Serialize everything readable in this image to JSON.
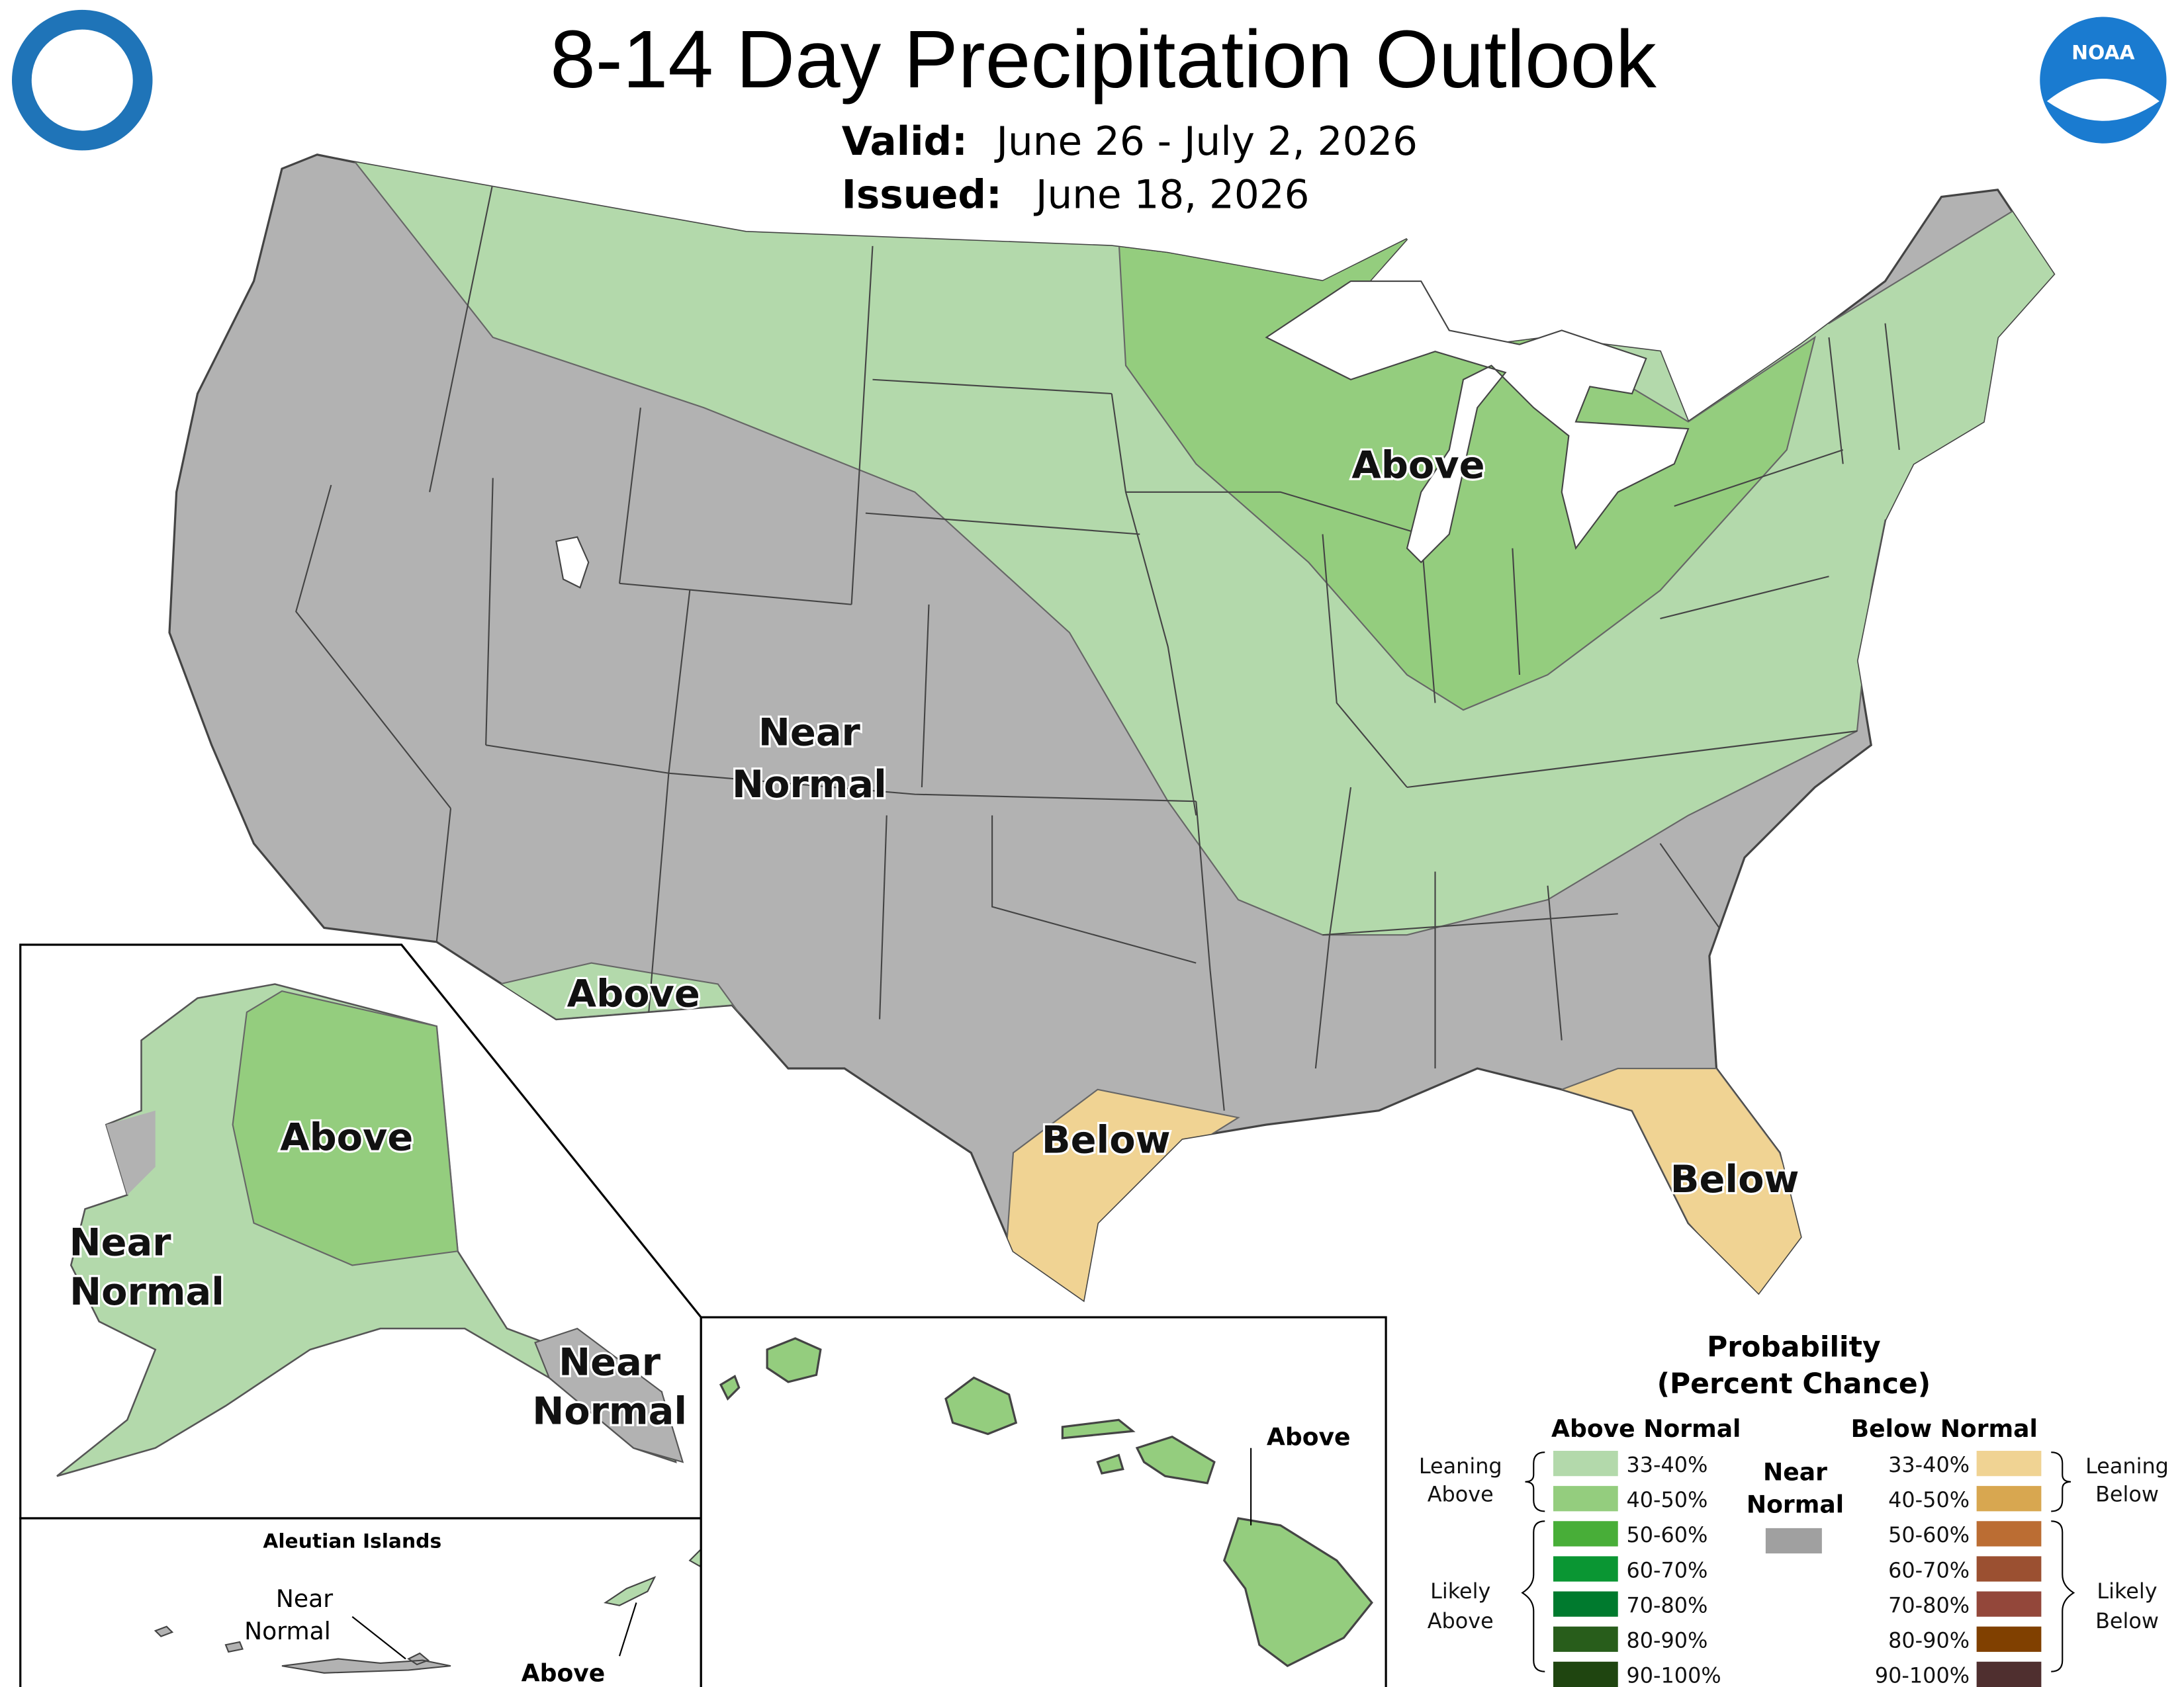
{
  "header": {
    "title": "8-14 Day Precipitation Outlook",
    "valid_label": "Valid:",
    "valid": "June 26 - July 2, 2026",
    "issued_label": "Issued:",
    "issued": "June 18, 2026",
    "noaa_logo": "NOAA"
  },
  "map": {
    "colors": {
      "near_normal": "#b2b2b2",
      "leaning_above": "#b3d9ab",
      "above_40_50": "#94cd7e",
      "leaning_below": "#f0d393",
      "water": "#ffffff"
    },
    "conus_labels": [
      {
        "lines": [
          "Above"
        ]
      },
      {
        "lines": [
          "Near",
          "Normal"
        ]
      },
      {
        "lines": [
          "Above"
        ]
      },
      {
        "lines": [
          "Below"
        ]
      },
      {
        "lines": [
          "Below"
        ]
      }
    ],
    "alaska_labels": [
      {
        "lines": [
          "Above"
        ]
      },
      {
        "lines": [
          "Near",
          "Normal"
        ]
      },
      {
        "lines": [
          "Near",
          "Normal"
        ]
      }
    ],
    "aleutian": {
      "title": "Aleutian Islands",
      "labels": [
        {
          "lines": [
            "Near",
            "Normal"
          ]
        },
        {
          "lines": [
            "Above"
          ]
        }
      ]
    },
    "hawaii_labels": [
      {
        "lines": [
          "Above"
        ]
      }
    ]
  },
  "legend": {
    "title": [
      "Probability",
      "(Percent Chance)"
    ],
    "above_normal": {
      "heading": "Above Normal",
      "items": [
        {
          "label": "33-40%",
          "color": "#b3d9ab"
        },
        {
          "label": "40-50%",
          "color": "#94cd7e"
        },
        {
          "label": "50-60%",
          "color": "#48ae38"
        },
        {
          "label": "60-70%",
          "color": "#0a9633"
        },
        {
          "label": "70-80%",
          "color": "#007a2e"
        },
        {
          "label": "80-90%",
          "color": "#285d1b"
        },
        {
          "label": "90-100%",
          "color": "#1f4510"
        }
      ]
    },
    "near_normal": {
      "heading": [
        "Near",
        "Normal"
      ],
      "color": "#a0a0a0"
    },
    "below_normal": {
      "heading": "Below Normal",
      "items": [
        {
          "label": "33-40%",
          "color": "#f0d393"
        },
        {
          "label": "40-50%",
          "color": "#d8a750"
        },
        {
          "label": "50-60%",
          "color": "#bb6d33"
        },
        {
          "label": "60-70%",
          "color": "#9b5031"
        },
        {
          "label": "70-80%",
          "color": "#93473a"
        },
        {
          "label": "80-90%",
          "color": "#804000"
        },
        {
          "label": "90-100%",
          "color": "#4f2f2f"
        }
      ]
    },
    "brackets": {
      "leaning_above": [
        "Leaning",
        "Above"
      ],
      "likely_above": [
        "Likely",
        "Above"
      ],
      "leaning_below": [
        "Leaning",
        "Below"
      ],
      "likely_below": [
        "Likely",
        "Below"
      ]
    }
  }
}
